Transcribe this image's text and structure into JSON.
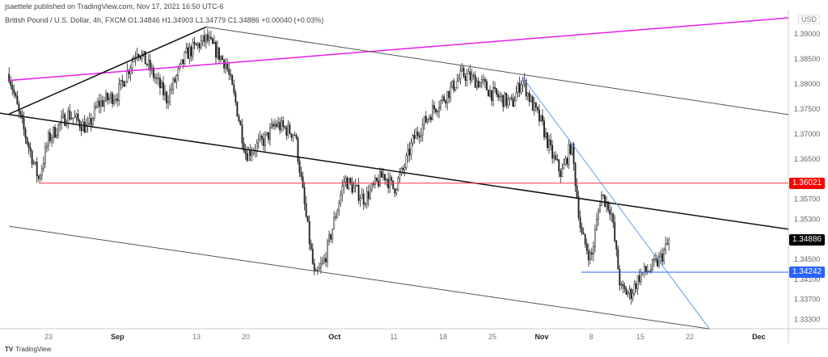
{
  "header": {
    "published": "jsaettele published on TradingView.com, Nov 17, 2021 16:50 UTC-6",
    "legend": "British Pound / U.S. Dollar, 4h, FXCM  O1.34846  H1.34903  L1.34779  C1.34886  +0.00040 (+0.03%)"
  },
  "brand": {
    "logo": "TV",
    "name": "TradingView"
  },
  "chart_data": {
    "type": "candlestick",
    "symbol": "British Pound / U.S. Dollar",
    "interval": "4h",
    "currency": "USD",
    "ylim": [
      1.3305,
      1.3945
    ],
    "y_ticks": [
      "1.39000",
      "1.38500",
      "1.38000",
      "1.37500",
      "1.37000",
      "1.36500",
      "1.35700",
      "1.35300",
      "1.34500",
      "1.34100",
      "1.33700",
      "1.33300"
    ],
    "x_ticks": [
      {
        "label": "23",
        "date": "2021-08-23"
      },
      {
        "label": "Sep",
        "date": "2021-09-01"
      },
      {
        "label": "13",
        "date": "2021-09-13"
      },
      {
        "label": "20",
        "date": "2021-09-20"
      },
      {
        "label": "Oct",
        "date": "2021-10-01"
      },
      {
        "label": "11",
        "date": "2021-10-11"
      },
      {
        "label": "18",
        "date": "2021-10-18"
      },
      {
        "label": "25",
        "date": "2021-10-25"
      },
      {
        "label": "Nov",
        "date": "2021-11-01"
      },
      {
        "label": "8",
        "date": "2021-11-08"
      },
      {
        "label": "15",
        "date": "2021-11-15"
      },
      {
        "label": "22",
        "date": "2021-11-22"
      },
      {
        "label": "Dec",
        "date": "2021-12-01"
      }
    ],
    "price_path": [
      [
        "2021-08-17",
        1.382
      ],
      [
        "2021-08-18",
        1.374
      ],
      [
        "2021-08-20",
        1.361
      ],
      [
        "2021-08-23",
        1.369
      ],
      [
        "2021-08-25",
        1.374
      ],
      [
        "2021-08-27",
        1.371
      ],
      [
        "2021-08-30",
        1.376
      ],
      [
        "2021-09-01",
        1.378
      ],
      [
        "2021-09-03",
        1.387
      ],
      [
        "2021-09-06",
        1.384
      ],
      [
        "2021-09-08",
        1.377
      ],
      [
        "2021-09-10",
        1.386
      ],
      [
        "2021-09-14",
        1.389
      ],
      [
        "2021-09-16",
        1.384
      ],
      [
        "2021-09-17",
        1.376
      ],
      [
        "2021-09-20",
        1.366
      ],
      [
        "2021-09-22",
        1.369
      ],
      [
        "2021-09-23",
        1.372
      ],
      [
        "2021-09-27",
        1.37
      ],
      [
        "2021-09-28",
        1.355
      ],
      [
        "2021-09-29",
        1.341
      ],
      [
        "2021-09-30",
        1.345
      ],
      [
        "2021-10-01",
        1.353
      ],
      [
        "2021-10-04",
        1.361
      ],
      [
        "2021-10-06",
        1.357
      ],
      [
        "2021-10-08",
        1.362
      ],
      [
        "2021-10-11",
        1.359
      ],
      [
        "2021-10-12",
        1.363
      ],
      [
        "2021-10-13",
        1.369
      ],
      [
        "2021-10-15",
        1.375
      ],
      [
        "2021-10-18",
        1.377
      ],
      [
        "2021-10-20",
        1.382
      ],
      [
        "2021-10-22",
        1.38
      ],
      [
        "2021-10-25",
        1.378
      ],
      [
        "2021-10-27",
        1.376
      ],
      [
        "2021-10-28",
        1.381
      ],
      [
        "2021-10-29",
        1.376
      ],
      [
        "2021-11-01",
        1.372
      ],
      [
        "2021-11-02",
        1.366
      ],
      [
        "2021-11-03",
        1.362
      ],
      [
        "2021-11-04",
        1.368
      ],
      [
        "2021-11-05",
        1.35
      ],
      [
        "2021-11-08",
        1.345
      ],
      [
        "2021-11-09",
        1.358
      ],
      [
        "2021-11-10",
        1.355
      ],
      [
        "2021-11-11",
        1.339
      ],
      [
        "2021-11-12",
        1.338
      ],
      [
        "2021-11-15",
        1.342
      ],
      [
        "2021-11-16",
        1.343
      ],
      [
        "2021-11-17",
        1.345
      ],
      [
        "2021-11-18",
        1.34886
      ]
    ],
    "drawings": [
      {
        "name": "magenta-trendline",
        "color": "#e91ee9",
        "from": [
          "2021-08-17",
          1.3807
        ],
        "to": [
          "2021-12-06",
          1.3932
        ],
        "width": 1.5
      },
      {
        "name": "rising-trendline",
        "color": "#111111",
        "from": [
          "2021-08-17",
          1.374
        ],
        "to": [
          "2021-09-14",
          1.3914
        ],
        "width": 1.5
      },
      {
        "name": "upper-channel-line",
        "color": "#555555",
        "from": [
          "2021-09-14",
          1.3914
        ],
        "to": [
          "2021-12-06",
          1.3739
        ],
        "width": 1
      },
      {
        "name": "middle-trendline",
        "color": "#111111",
        "from": [
          "2021-08-16",
          1.3742
        ],
        "to": [
          "2021-12-06",
          1.351
        ],
        "width": 1.5
      },
      {
        "name": "lower-channel-line",
        "color": "#555555",
        "from": [
          "2021-08-17",
          1.3516
        ],
        "to": [
          "2021-11-24",
          1.3311
        ],
        "width": 1
      },
      {
        "name": "blue-downtrend-line",
        "color": "#5b9cf0",
        "from": [
          "2021-10-28",
          1.3815
        ],
        "to": [
          "2021-11-24",
          1.3311
        ],
        "width": 1
      },
      {
        "name": "red-horizontal",
        "color": "#f23645",
        "from": [
          "2021-08-20",
          1.36021
        ],
        "to": [
          "2021-12-06",
          1.36021
        ],
        "width": 1
      },
      {
        "name": "blue-horizontal",
        "color": "#2962ff",
        "from": [
          "2021-11-05",
          1.34242
        ],
        "to": [
          "2021-12-06",
          1.34242
        ],
        "width": 1
      }
    ],
    "price_labels": [
      {
        "value": "1.36021",
        "color": "#ff0000"
      },
      {
        "value": "1.34886",
        "color": "#000000"
      },
      {
        "value": "1.34242",
        "color": "#2962ff"
      }
    ]
  }
}
